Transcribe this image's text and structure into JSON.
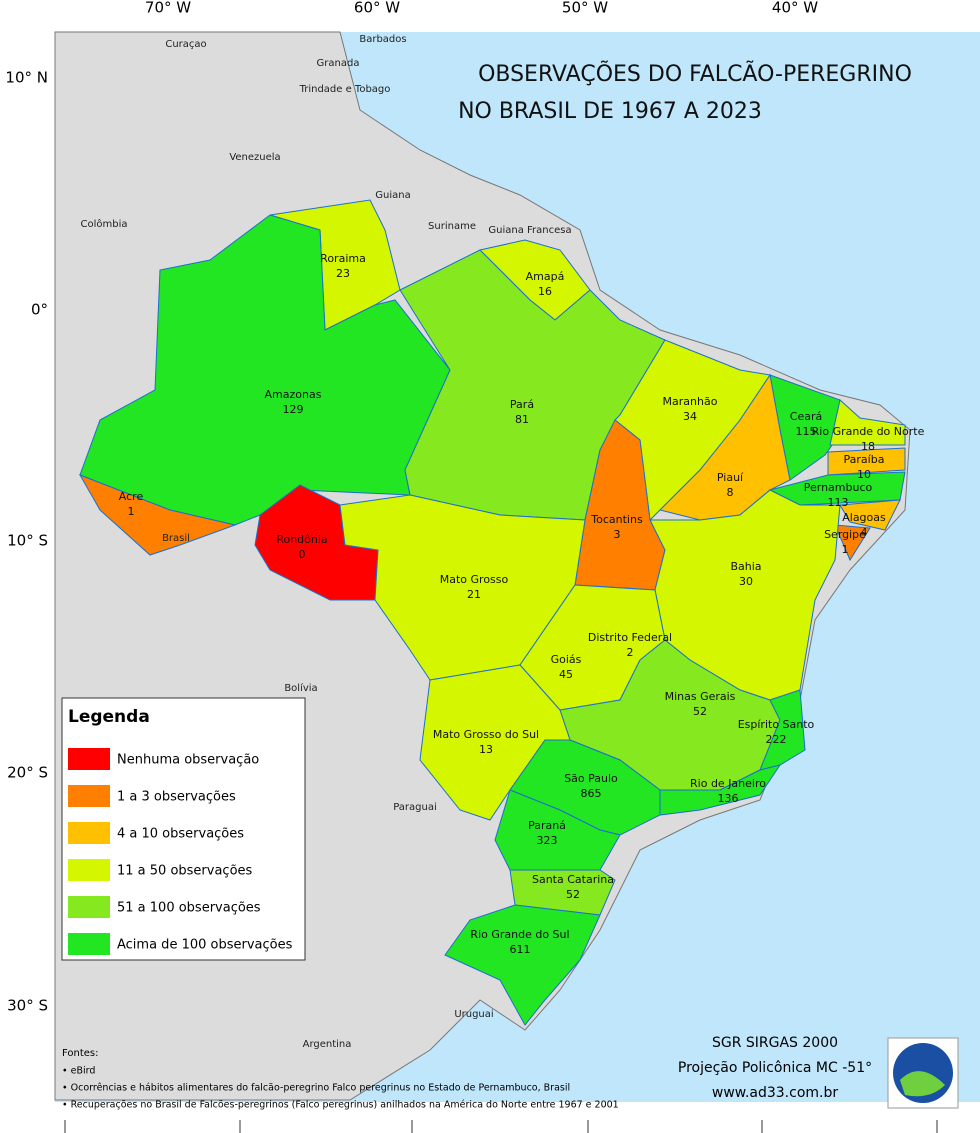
{
  "title": [
    "OBSERVAÇÕES DO FALCÃO-PEREGRINO",
    "NO BRASIL DE 1967 A 2023"
  ],
  "axes": {
    "top": [
      "70° W",
      "60° W",
      "50° W",
      "40° W"
    ],
    "left": [
      "10° N",
      "0°",
      "10° S",
      "20° S",
      "30° S"
    ]
  },
  "countries": [
    "Curaçao",
    "Barbados",
    "Granada",
    "Trindade e Tobago",
    "Venezuela",
    "Guiana",
    "Colômbia",
    "Suriname",
    "Guiana Francesa",
    "Brasil",
    "Bolívia",
    "Paraguai",
    "Argentina",
    "Uruguai"
  ],
  "states": [
    {
      "name": "Roraima",
      "value": 23,
      "color": "#d4f700"
    },
    {
      "name": "Amapá",
      "value": 16,
      "color": "#d4f700"
    },
    {
      "name": "Amazonas",
      "value": 129,
      "color": "#22e622"
    },
    {
      "name": "Pará",
      "value": 81,
      "color": "#86e81e"
    },
    {
      "name": "Maranhão",
      "value": 34,
      "color": "#d4f700"
    },
    {
      "name": "Ceará",
      "value": 115,
      "color": "#22e622"
    },
    {
      "name": "Rio Grande do Norte",
      "value": 18,
      "color": "#d4f700"
    },
    {
      "name": "Paraíba",
      "value": 10,
      "color": "#ffc000"
    },
    {
      "name": "Piauí",
      "value": 8,
      "color": "#ffc000"
    },
    {
      "name": "Pernambuco",
      "value": 113,
      "color": "#22e622"
    },
    {
      "name": "Alagoas",
      "value": 4,
      "color": "#ffc000"
    },
    {
      "name": "Sergipe",
      "value": 1,
      "color": "#ff7f00"
    },
    {
      "name": "Acre",
      "value": 1,
      "color": "#ff7f00"
    },
    {
      "name": "Tocantins",
      "value": 3,
      "color": "#ff7f00"
    },
    {
      "name": "Rondônia",
      "value": 0,
      "color": "#ff0000"
    },
    {
      "name": "Bahia",
      "value": 30,
      "color": "#d4f700"
    },
    {
      "name": "Mato Grosso",
      "value": 21,
      "color": "#d4f700"
    },
    {
      "name": "Distrito Federal",
      "value": 2,
      "color": "#ff7f00"
    },
    {
      "name": "Goiás",
      "value": 45,
      "color": "#d4f700"
    },
    {
      "name": "Minas Gerais",
      "value": 52,
      "color": "#86e81e"
    },
    {
      "name": "Espírito Santo",
      "value": 222,
      "color": "#22e622"
    },
    {
      "name": "Mato Grosso do Sul",
      "value": 13,
      "color": "#d4f700"
    },
    {
      "name": "São Paulo",
      "value": 865,
      "color": "#22e622"
    },
    {
      "name": "Rio de Janeiro",
      "value": 136,
      "color": "#22e622"
    },
    {
      "name": "Paraná",
      "value": 323,
      "color": "#22e622"
    },
    {
      "name": "Santa Catarina",
      "value": 52,
      "color": "#86e81e"
    },
    {
      "name": "Rio Grande do Sul",
      "value": 611,
      "color": "#22e622"
    }
  ],
  "legend": {
    "title": "Legenda",
    "items": [
      {
        "label": "Nenhuma observação",
        "color": "#ff0000"
      },
      {
        "label": "1 a 3 observações",
        "color": "#ff7f00"
      },
      {
        "label": "4 a 10 observações",
        "color": "#ffc000"
      },
      {
        "label": "11 a 50 observações",
        "color": "#d4f700"
      },
      {
        "label": "51 a 100 observações",
        "color": "#86e81e"
      },
      {
        "label": "Acima de 100 observações",
        "color": "#22e622"
      }
    ]
  },
  "sources": {
    "title": "Fontes:",
    "items": [
      "• eBird",
      "• Ocorrências e hábitos alimentares do falcão-peregrino Falco peregrinus no Estado de Pernambuco, Brasil",
      "• Recuperações no Brasil de Falcões-peregrinos (Falco peregrinus) anilhados na América do Norte entre 1967 e 2001"
    ]
  },
  "projection": [
    "SGR SIRGAS 2000",
    "Projeção Policônica MC -51°",
    "www.ad33.com.br"
  ]
}
